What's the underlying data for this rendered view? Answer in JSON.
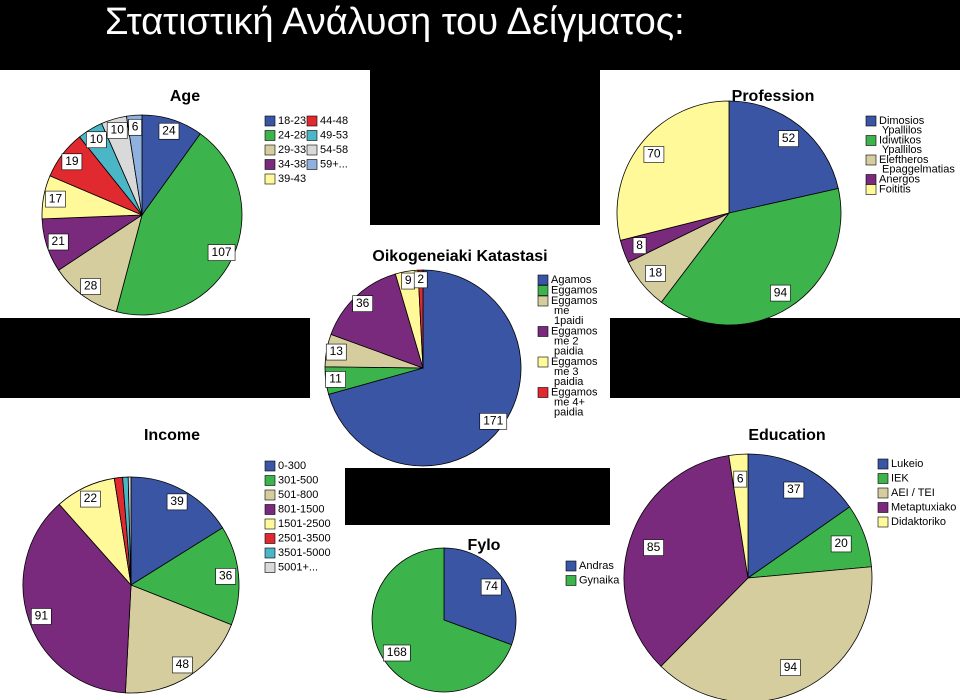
{
  "title": "Στατιστική Ανάλυση του Δείγματος:",
  "chart_data": [
    {
      "type": "pie",
      "title": "Age",
      "categories": [
        "18-23",
        "24-28",
        "29-33",
        "34-38",
        "39-43",
        "44-48",
        "49-53",
        "54-58",
        "59+..."
      ],
      "values": [
        24,
        107,
        28,
        21,
        17,
        19,
        10,
        10,
        6
      ],
      "colors": [
        "#3b55a5",
        "#3cb44b",
        "#d5cd9e",
        "#7a2a7d",
        "#fff99a",
        "#e12a30",
        "#4bb7c6",
        "#d9d9d9",
        "#8eb1de"
      ]
    },
    {
      "type": "pie",
      "title": "Profession",
      "categories": [
        "Dimosios Ypallilos",
        "Idiwtikos Ypallilos",
        "Eleftheros Epaggelmatias",
        "Anergos",
        "Foititis"
      ],
      "values": [
        52,
        94,
        18,
        8,
        70
      ],
      "colors": [
        "#3b55a5",
        "#3cb44b",
        "#d5cd9e",
        "#7a2a7d",
        "#fff99a"
      ]
    },
    {
      "type": "pie",
      "title": "Oikogeneiaki Katastasi",
      "categories": [
        "Agamos",
        "Eggamos",
        "Eggamos me 1paidi",
        "Eggamos me 2 paidia",
        "Eggamos me 3 paidia",
        "Eggamos me 4+ paidia"
      ],
      "values": [
        171,
        11,
        13,
        36,
        9,
        2
      ],
      "colors": [
        "#3b55a5",
        "#3cb44b",
        "#d5cd9e",
        "#7a2a7d",
        "#fff99a",
        "#e12a30"
      ]
    },
    {
      "type": "pie",
      "title": "Income",
      "categories": [
        "0-300",
        "301-500",
        "501-800",
        "801-1500",
        "1501-2500",
        "2501-3500",
        "3501-5000",
        "5001+..."
      ],
      "values": [
        39,
        36,
        48,
        91,
        22,
        3,
        2,
        1
      ],
      "value_labels": [
        "39",
        "36",
        "48",
        "91",
        "22",
        null,
        null,
        null
      ],
      "colors": [
        "#3b55a5",
        "#3cb44b",
        "#d5cd9e",
        "#7a2a7d",
        "#fff99a",
        "#e12a30",
        "#4bb7c6",
        "#d9d9d9"
      ]
    },
    {
      "type": "pie",
      "title": "Fylo",
      "categories": [
        "Andras",
        "Gynaika"
      ],
      "values": [
        74,
        168
      ],
      "colors": [
        "#3b55a5",
        "#3cb44b"
      ]
    },
    {
      "type": "pie",
      "title": "Education",
      "categories": [
        "Lukeio",
        "IEK",
        "AEI / TEI",
        "Metaptuxiako",
        "Didaktoriko"
      ],
      "values": [
        37,
        20,
        94,
        85,
        6
      ],
      "colors": [
        "#3b55a5",
        "#3cb44b",
        "#d5cd9e",
        "#7a2a7d",
        "#fff99a"
      ]
    }
  ]
}
